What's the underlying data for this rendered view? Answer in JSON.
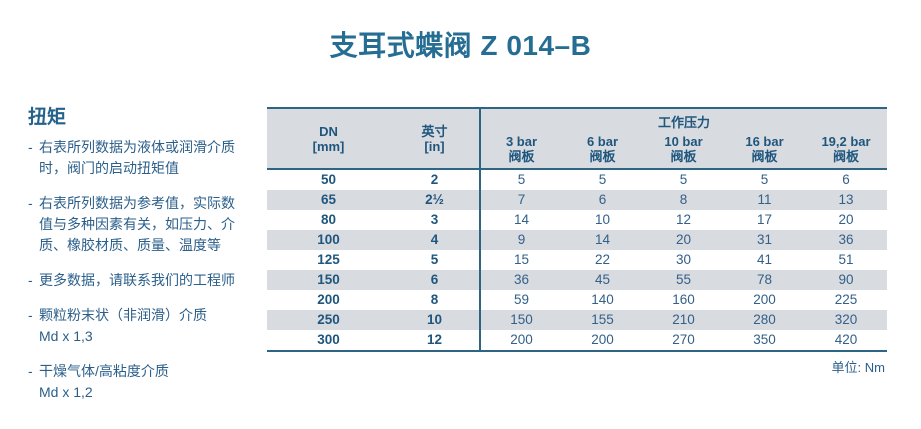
{
  "title": "支耳式蝶阀 Z 014–B",
  "colors": {
    "title_text": "#256d92",
    "body_text": "#2b5f8a",
    "table_header_text": "#1f567e",
    "table_data_text": "#336089",
    "rule_line": "#2e6484",
    "stripe_bg": "#d8dbdf"
  },
  "torque": {
    "heading": "扭矩",
    "bullet": "-",
    "notes": [
      {
        "lines": [
          "右表所列数据为液体或润滑介质",
          "时，阀门的启动扭矩值"
        ]
      },
      {
        "lines": [
          "右表所列数据为参考值，实际数",
          "值与多种因素有关，如压力、介",
          "质、橡胶材质、质量、温度等"
        ]
      },
      {
        "lines": [
          "更多数据，请联系我们的工程师"
        ]
      },
      {
        "lines": [
          "颗粒粉末状（非润滑）介质",
          "Md x 1,3"
        ]
      },
      {
        "lines": [
          "干燥气体/高粘度介质",
          "Md x 1,2"
        ]
      }
    ]
  },
  "table": {
    "pressure_group_label": "工作压力",
    "columns": [
      {
        "label": "DN",
        "sub": "[mm]"
      },
      {
        "label": "英寸",
        "sub": "[in]"
      },
      {
        "label": "3 bar",
        "sub": "阀板"
      },
      {
        "label": "6 bar",
        "sub": "阀板"
      },
      {
        "label": "10 bar",
        "sub": "阀板"
      },
      {
        "label": "16 bar",
        "sub": "阀板"
      },
      {
        "label": "19,2 bar",
        "sub": "阀板"
      }
    ],
    "rows": [
      [
        "50",
        "2",
        "5",
        "5",
        "5",
        "5",
        "6"
      ],
      [
        "65",
        "2½",
        "7",
        "6",
        "8",
        "11",
        "13"
      ],
      [
        "80",
        "3",
        "14",
        "10",
        "12",
        "17",
        "20"
      ],
      [
        "100",
        "4",
        "9",
        "14",
        "20",
        "31",
        "36"
      ],
      [
        "125",
        "5",
        "15",
        "22",
        "30",
        "41",
        "51"
      ],
      [
        "150",
        "6",
        "36",
        "45",
        "55",
        "78",
        "90"
      ],
      [
        "200",
        "8",
        "59",
        "140",
        "160",
        "200",
        "225"
      ],
      [
        "250",
        "10",
        "150",
        "155",
        "210",
        "280",
        "320"
      ],
      [
        "300",
        "12",
        "200",
        "200",
        "270",
        "350",
        "420"
      ]
    ],
    "unit_label": "单位: Nm"
  }
}
